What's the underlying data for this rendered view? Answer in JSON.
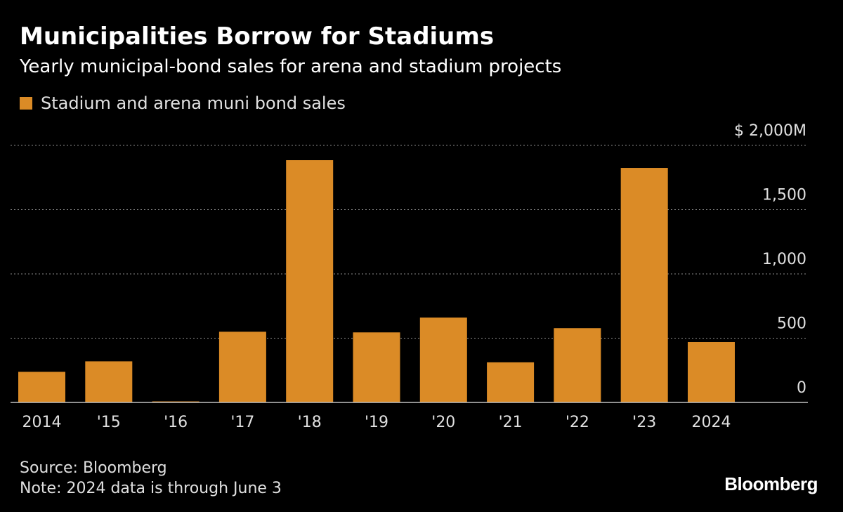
{
  "header": {
    "title": "Municipalities Borrow for Stadiums",
    "subtitle": "Yearly municipal-bond sales for arena and stadium projects"
  },
  "footer": {
    "source": "Source: Bloomberg",
    "note": "Note: 2024 data is through June 3",
    "logo": "Bloomberg"
  },
  "colors": {
    "bar": "#DB8B26",
    "grid": "#8c8c8c",
    "axis": "#bfbfbf",
    "background": "#000000"
  },
  "chart_data": {
    "type": "bar",
    "categories": [
      "2014",
      "'15",
      "'16",
      "'17",
      "'18",
      "'19",
      "'20",
      "'21",
      "'22",
      "'23",
      "2024"
    ],
    "series": [
      {
        "name": "Stadium and arena muni bond sales",
        "values": [
          238,
          320,
          8,
          550,
          1885,
          545,
          660,
          312,
          578,
          1825,
          470
        ]
      }
    ],
    "y_ticks": [
      {
        "value": 0,
        "label": "0"
      },
      {
        "value": 500,
        "label": "500"
      },
      {
        "value": 1000,
        "label": "1,000"
      },
      {
        "value": 1500,
        "label": "1,500"
      },
      {
        "value": 2000,
        "label": "$ 2,000M"
      }
    ],
    "ylim": [
      0,
      2000
    ],
    "grid": true,
    "legend": "top-left",
    "y_axis_side": "right"
  }
}
